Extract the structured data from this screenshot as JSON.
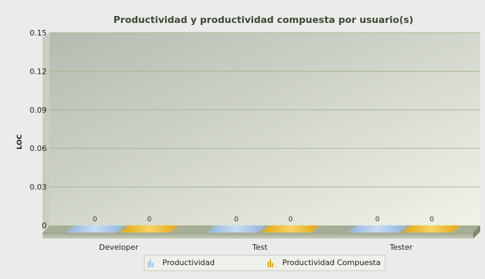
{
  "chart_data": {
    "type": "bar",
    "title": "Productividad y productividad compuesta por usuario(s)",
    "xlabel": "",
    "ylabel": "LOC",
    "categories": [
      "Developer",
      "Test",
      "Tester"
    ],
    "series": [
      {
        "name": "Productividad",
        "values": [
          0,
          0,
          0
        ]
      },
      {
        "name": "Productividad Compuesta",
        "values": [
          0,
          0,
          0
        ]
      }
    ],
    "ylim": [
      0,
      0.15
    ],
    "yticks": [
      "0",
      "0.03",
      "0.06",
      "0.09",
      "0.12",
      "0.15"
    ],
    "data_labels": [
      [
        "0",
        "0"
      ],
      [
        "0",
        "0"
      ],
      [
        "0",
        "0"
      ]
    ],
    "grid": true,
    "legend_position": "bottom",
    "colors": {
      "series": [
        "#a9c8ea",
        "#f0c23a"
      ],
      "plot_bg_top": "#b9bfb2",
      "plot_bg_bottom": "#eef1e6",
      "grid": "#a7b58f",
      "floor": "#9ba48c",
      "title": "#3d4a33"
    }
  }
}
